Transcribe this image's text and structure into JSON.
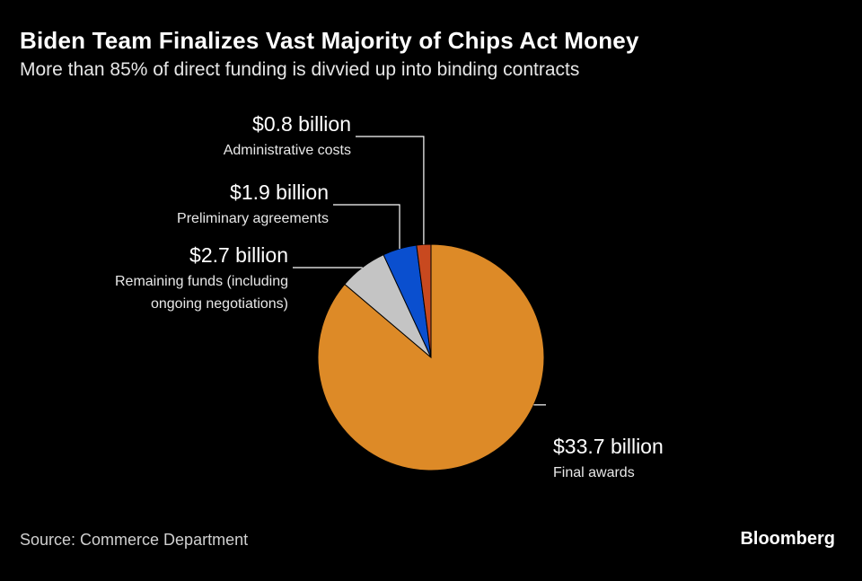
{
  "header": {
    "title": "Biden Team Finalizes Vast Majority of Chips Act Money",
    "subtitle": "More than 85% of direct funding is divvied up into binding contracts"
  },
  "footer": {
    "source": "Source: Commerce Department",
    "brand": "Bloomberg"
  },
  "chart_data": {
    "type": "pie",
    "unit": "billion USD",
    "slices": [
      {
        "name": "Final awards",
        "value": 33.7,
        "value_label": "$33.7 billion",
        "color": "#dd8a27",
        "name_lines": [
          "Final awards"
        ]
      },
      {
        "name": "Remaining funds (including ongoing negotiations)",
        "value": 2.7,
        "value_label": "$2.7 billion",
        "color": "#c4c4c4",
        "name_lines": [
          "Remaining funds (including",
          "ongoing negotiations)"
        ]
      },
      {
        "name": "Preliminary agreements",
        "value": 1.9,
        "value_label": "$1.9 billion",
        "color": "#0a4fcf",
        "name_lines": [
          "Preliminary agreements"
        ]
      },
      {
        "name": "Administrative costs",
        "value": 0.8,
        "value_label": "$0.8 billion",
        "color": "#c8491f",
        "name_lines": [
          "Administrative costs"
        ]
      }
    ]
  }
}
